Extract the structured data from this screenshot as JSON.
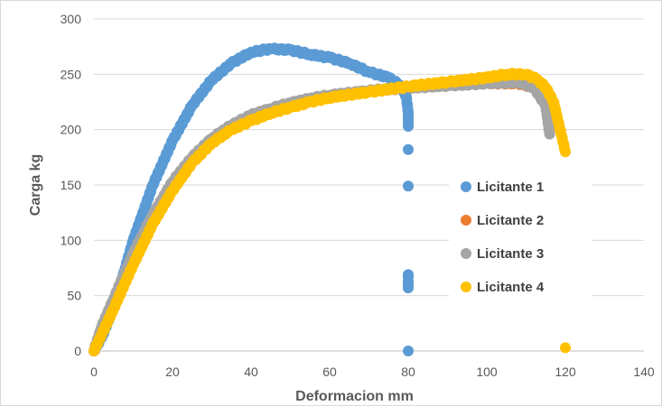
{
  "chart_data": {
    "type": "scatter",
    "title": "",
    "xlabel": "Deformacion mm",
    "ylabel": "Carga kg",
    "xlim": [
      0,
      140
    ],
    "ylim": [
      0,
      300
    ],
    "x_ticks": [
      0,
      20,
      40,
      60,
      80,
      100,
      120,
      140
    ],
    "y_ticks": [
      0,
      50,
      100,
      150,
      200,
      250,
      300
    ],
    "grid": "horizontal",
    "legend_position": "right",
    "colors": {
      "Licitante 1": "#5B9BD5",
      "Licitante 2": "#ED7D31",
      "Licitante 3": "#A5A5A5",
      "Licitante 4": "#FFC000"
    },
    "series": [
      {
        "name": "Licitante 1",
        "points": [
          [
            0,
            0
          ],
          [
            2,
            12
          ],
          [
            5,
            40
          ],
          [
            8,
            75
          ],
          [
            10,
            100
          ],
          [
            15,
            150
          ],
          [
            20,
            190
          ],
          [
            25,
            222
          ],
          [
            30,
            245
          ],
          [
            35,
            260
          ],
          [
            40,
            270
          ],
          [
            45,
            273
          ],
          [
            50,
            272
          ],
          [
            55,
            268
          ],
          [
            60,
            265
          ],
          [
            65,
            260
          ],
          [
            70,
            252
          ],
          [
            75,
            247
          ],
          [
            78,
            240
          ],
          [
            79.5,
            230
          ],
          [
            80,
            215
          ],
          [
            80,
            203
          ],
          [
            80,
            182
          ],
          [
            80,
            149
          ],
          [
            80,
            69
          ],
          [
            80,
            57
          ],
          [
            80,
            0
          ]
        ]
      },
      {
        "name": "Licitante 2",
        "points": [
          [
            0,
            0
          ],
          [
            2,
            20
          ],
          [
            5,
            45
          ],
          [
            10,
            85
          ],
          [
            15,
            120
          ],
          [
            20,
            150
          ],
          [
            25,
            172
          ],
          [
            30,
            190
          ],
          [
            35,
            202
          ],
          [
            40,
            212
          ],
          [
            45,
            218
          ],
          [
            50,
            222
          ],
          [
            55,
            226
          ],
          [
            60,
            230
          ],
          [
            70,
            235
          ],
          [
            80,
            238
          ],
          [
            90,
            240
          ],
          [
            100,
            242
          ],
          [
            108,
            242
          ],
          [
            112,
            238
          ],
          [
            115,
            222
          ],
          [
            116,
            198
          ]
        ]
      },
      {
        "name": "Licitante 3",
        "points": [
          [
            0,
            0
          ],
          [
            2,
            22
          ],
          [
            5,
            47
          ],
          [
            10,
            88
          ],
          [
            15,
            123
          ],
          [
            20,
            153
          ],
          [
            25,
            175
          ],
          [
            30,
            192
          ],
          [
            35,
            204
          ],
          [
            40,
            213
          ],
          [
            45,
            219
          ],
          [
            50,
            224
          ],
          [
            55,
            228
          ],
          [
            60,
            231
          ],
          [
            70,
            235
          ],
          [
            80,
            238
          ],
          [
            90,
            240
          ],
          [
            100,
            242
          ],
          [
            108,
            243
          ],
          [
            112,
            238
          ],
          [
            115,
            222
          ],
          [
            116,
            196
          ]
        ]
      },
      {
        "name": "Licitante 4",
        "points": [
          [
            0,
            0
          ],
          [
            2,
            15
          ],
          [
            5,
            38
          ],
          [
            10,
            78
          ],
          [
            15,
            115
          ],
          [
            20,
            145
          ],
          [
            25,
            170
          ],
          [
            30,
            188
          ],
          [
            35,
            200
          ],
          [
            40,
            208
          ],
          [
            45,
            215
          ],
          [
            50,
            220
          ],
          [
            55,
            225
          ],
          [
            60,
            229
          ],
          [
            70,
            234
          ],
          [
            80,
            239
          ],
          [
            90,
            243
          ],
          [
            100,
            247
          ],
          [
            105,
            250
          ],
          [
            110,
            250
          ],
          [
            113,
            245
          ],
          [
            115,
            238
          ],
          [
            117,
            225
          ],
          [
            118,
            210
          ],
          [
            119,
            195
          ],
          [
            120,
            180
          ],
          [
            120,
            3
          ]
        ]
      }
    ]
  }
}
